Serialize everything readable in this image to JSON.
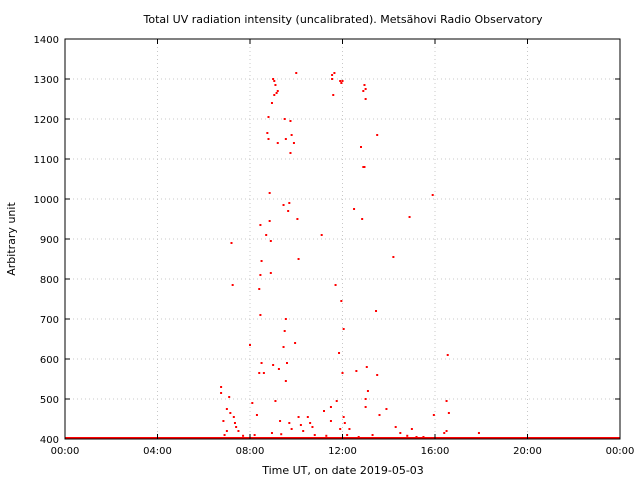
{
  "chart_data": {
    "type": "scatter",
    "title": "Total UV radiation intensity (uncalibrated). Metsähovi Radio Observatory",
    "xlabel": "Time UT, on date 2019-05-03",
    "ylabel": "Arbitrary unit",
    "x_unit": "hours UT",
    "xlim": [
      0,
      24
    ],
    "ylim": [
      400,
      1400
    ],
    "xticks": [
      0,
      4,
      8,
      12,
      16,
      20,
      24
    ],
    "xtick_labels": [
      "00:00",
      "04:00",
      "08:00",
      "12:00",
      "16:00",
      "20:00",
      "00:00"
    ],
    "yticks": [
      400,
      500,
      600,
      700,
      800,
      900,
      1000,
      1100,
      1200,
      1300,
      1400
    ],
    "ytick_labels": [
      "400",
      "500",
      "600",
      "700",
      "800",
      "900",
      "1000",
      "1100",
      "1200",
      "1300",
      "1400"
    ],
    "grid": true,
    "marker_color": "#ff0000",
    "baseline": {
      "x_start": 0,
      "x_end": 24,
      "value": 400
    },
    "points": [
      [
        6.75,
        530
      ],
      [
        6.75,
        515
      ],
      [
        6.85,
        445
      ],
      [
        7.0,
        475
      ],
      [
        7.1,
        505
      ],
      [
        7.15,
        465
      ],
      [
        7.2,
        890
      ],
      [
        7.25,
        785
      ],
      [
        7.3,
        455
      ],
      [
        7.35,
        440
      ],
      [
        7.4,
        430
      ],
      [
        7.5,
        420
      ],
      [
        7.0,
        420
      ],
      [
        6.9,
        410
      ],
      [
        8.0,
        635
      ],
      [
        8.1,
        490
      ],
      [
        8.3,
        460
      ],
      [
        8.4,
        565
      ],
      [
        8.45,
        710
      ],
      [
        8.4,
        775
      ],
      [
        8.45,
        810
      ],
      [
        8.5,
        845
      ],
      [
        8.45,
        935
      ],
      [
        8.5,
        590
      ],
      [
        8.6,
        565
      ],
      [
        8.7,
        910
      ],
      [
        8.75,
        1165
      ],
      [
        8.8,
        1150
      ],
      [
        8.8,
        1205
      ],
      [
        8.85,
        1015
      ],
      [
        8.85,
        945
      ],
      [
        8.9,
        815
      ],
      [
        8.9,
        895
      ],
      [
        8.95,
        1240
      ],
      [
        9.0,
        1300
      ],
      [
        9.05,
        1295
      ],
      [
        9.05,
        1260
      ],
      [
        9.1,
        1285
      ],
      [
        9.15,
        1265
      ],
      [
        9.2,
        1270
      ],
      [
        9.2,
        1140
      ],
      [
        9.0,
        585
      ],
      [
        9.1,
        495
      ],
      [
        9.25,
        575
      ],
      [
        9.3,
        445
      ],
      [
        8.95,
        415
      ],
      [
        9.45,
        985
      ],
      [
        9.5,
        1200
      ],
      [
        9.55,
        1150
      ],
      [
        9.55,
        700
      ],
      [
        9.5,
        670
      ],
      [
        9.45,
        630
      ],
      [
        9.6,
        590
      ],
      [
        9.55,
        545
      ],
      [
        9.65,
        970
      ],
      [
        9.7,
        990
      ],
      [
        9.75,
        1195
      ],
      [
        9.75,
        1115
      ],
      [
        9.8,
        1160
      ],
      [
        9.9,
        1140
      ],
      [
        10.0,
        1315
      ],
      [
        9.95,
        640
      ],
      [
        10.05,
        950
      ],
      [
        10.1,
        850
      ],
      [
        10.1,
        455
      ],
      [
        10.2,
        435
      ],
      [
        9.8,
        425
      ],
      [
        9.7,
        440
      ],
      [
        10.3,
        420
      ],
      [
        10.5,
        455
      ],
      [
        10.6,
        440
      ],
      [
        10.7,
        430
      ],
      [
        11.1,
        910
      ],
      [
        11.2,
        470
      ],
      [
        11.5,
        445
      ],
      [
        11.5,
        480
      ],
      [
        11.55,
        1310
      ],
      [
        11.55,
        1300
      ],
      [
        11.6,
        1260
      ],
      [
        11.65,
        1315
      ],
      [
        11.7,
        785
      ],
      [
        11.75,
        495
      ],
      [
        11.85,
        615
      ],
      [
        11.9,
        1295
      ],
      [
        11.95,
        1290
      ],
      [
        12.0,
        1295
      ],
      [
        11.95,
        745
      ],
      [
        12.05,
        675
      ],
      [
        12.0,
        565
      ],
      [
        12.05,
        455
      ],
      [
        11.9,
        425
      ],
      [
        12.1,
        440
      ],
      [
        12.3,
        425
      ],
      [
        12.5,
        975
      ],
      [
        12.6,
        570
      ],
      [
        12.8,
        1130
      ],
      [
        12.9,
        1270
      ],
      [
        12.95,
        1285
      ],
      [
        12.9,
        1080
      ],
      [
        13.0,
        1275
      ],
      [
        13.0,
        1250
      ],
      [
        12.85,
        950
      ],
      [
        12.95,
        1080
      ],
      [
        13.05,
        580
      ],
      [
        13.0,
        500
      ],
      [
        13.1,
        520
      ],
      [
        13.0,
        480
      ],
      [
        13.5,
        1160
      ],
      [
        13.45,
        720
      ],
      [
        13.5,
        560
      ],
      [
        13.6,
        460
      ],
      [
        13.9,
        475
      ],
      [
        14.2,
        855
      ],
      [
        14.3,
        430
      ],
      [
        14.5,
        415
      ],
      [
        14.9,
        955
      ],
      [
        15.0,
        425
      ],
      [
        15.2,
        405
      ],
      [
        15.9,
        1010
      ],
      [
        15.95,
        460
      ],
      [
        16.55,
        610
      ],
      [
        16.5,
        495
      ],
      [
        16.6,
        465
      ],
      [
        16.5,
        420
      ],
      [
        16.4,
        415
      ],
      [
        17.9,
        415
      ],
      [
        12.7,
        405
      ],
      [
        13.3,
        410
      ],
      [
        14.8,
        408
      ],
      [
        15.5,
        405
      ],
      [
        10.8,
        410
      ],
      [
        11.3,
        408
      ],
      [
        8.2,
        410
      ],
      [
        7.7,
        408
      ],
      [
        9.35,
        412
      ],
      [
        12.2,
        410
      ]
    ]
  }
}
